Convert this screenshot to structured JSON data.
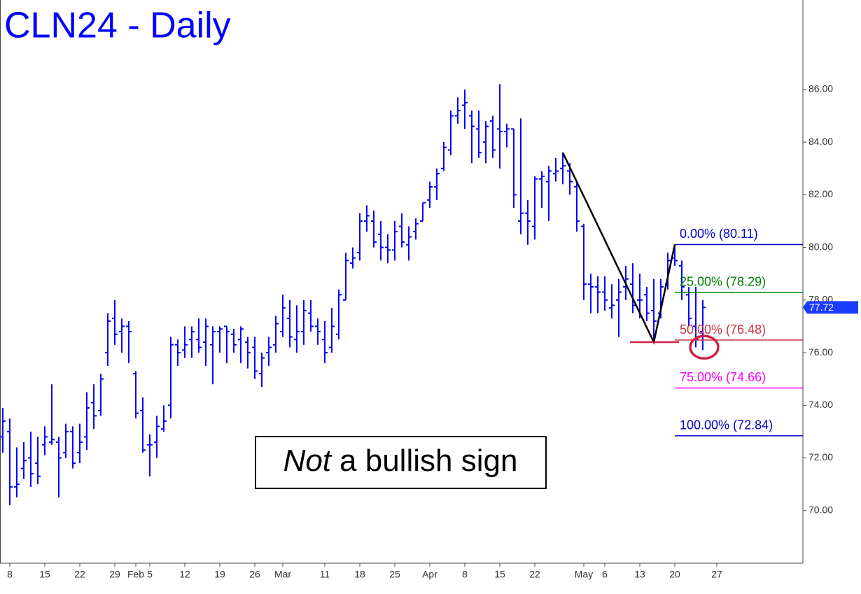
{
  "chart_data": {
    "type": "ohlc",
    "title": "CLN24 - Daily",
    "color": "#0000ff",
    "categories": [
      "01-05",
      "01-08",
      "01-09",
      "01-10",
      "01-11",
      "01-12",
      "01-15",
      "01-16",
      "01-17",
      "01-18",
      "01-19",
      "01-22",
      "01-23",
      "01-24",
      "01-25",
      "01-26",
      "01-29",
      "01-30",
      "01-31",
      "02-01",
      "02-02",
      "02-05",
      "02-06",
      "02-07",
      "02-08",
      "02-09",
      "02-12",
      "02-13",
      "02-14",
      "02-15",
      "02-16",
      "02-19",
      "02-20",
      "02-21",
      "02-22",
      "02-23",
      "02-26",
      "02-27",
      "02-28",
      "02-29",
      "03-01",
      "03-04",
      "03-05",
      "03-06",
      "03-07",
      "03-08",
      "03-11",
      "03-12",
      "03-13",
      "03-14",
      "03-15",
      "03-18",
      "03-19",
      "03-20",
      "03-21",
      "03-22",
      "03-25",
      "03-26",
      "03-27",
      "03-28",
      "03-29",
      "04-01",
      "04-02",
      "04-03",
      "04-04",
      "04-05",
      "04-08",
      "04-09",
      "04-10",
      "04-11",
      "04-12",
      "04-15",
      "04-16",
      "04-17",
      "04-18",
      "04-19",
      "04-22",
      "04-23",
      "04-24",
      "04-25",
      "04-26",
      "04-29",
      "04-30",
      "05-01",
      "05-02",
      "05-03",
      "05-06",
      "05-07",
      "05-08",
      "05-09",
      "05-10",
      "05-13",
      "05-14",
      "05-15",
      "05-16",
      "05-17",
      "05-20",
      "05-21",
      "05-22",
      "05-23",
      "05-24"
    ],
    "open": [
      72.8,
      73.0,
      70.9,
      71.6,
      72.0,
      71.8,
      72.5,
      72.6,
      72.6,
      72.2,
      73.0,
      72.2,
      72.8,
      74.1,
      73.8,
      76.0,
      77.3,
      76.8,
      77.0,
      75.2,
      73.8,
      72.5,
      72.6,
      73.1,
      74.0,
      76.3,
      76.1,
      76.5,
      76.5,
      76.4,
      76.3,
      76.8,
      77.0,
      76.7,
      76.5,
      76.4,
      76.2,
      75.2,
      76.0,
      76.3,
      76.8,
      77.3,
      76.5,
      76.8,
      77.5,
      77.0,
      76.5,
      76.2,
      76.7,
      78.0,
      79.4,
      79.8,
      81.0,
      81.0,
      80.5,
      80.0,
      79.9,
      80.8,
      80.1,
      80.6,
      81.0,
      81.8,
      82.3,
      83.0,
      83.7,
      85.0,
      85.4,
      85.0,
      84.5,
      84.0,
      84.8,
      84.5,
      84.4,
      84.5,
      81.0,
      81.3,
      80.8,
      82.6,
      82.5,
      82.8,
      83.0,
      82.9,
      82.3,
      80.8,
      78.6,
      78.5,
      78.3,
      77.7,
      78.0,
      78.5,
      78.6,
      78.0,
      78.2,
      77.6,
      77.5,
      78.6,
      79.6,
      79.3,
      78.2,
      77.0,
      76.8
    ],
    "high": [
      73.9,
      73.5,
      72.4,
      72.6,
      73.0,
      72.8,
      73.2,
      74.8,
      72.8,
      73.3,
      73.2,
      73.3,
      74.5,
      74.8,
      75.2,
      77.5,
      78.0,
      77.3,
      77.2,
      75.3,
      74.3,
      72.9,
      73.6,
      74.0,
      76.6,
      76.5,
      77.0,
      77.0,
      77.3,
      77.3,
      77.0,
      77.0,
      77.0,
      76.9,
      77.0,
      76.6,
      76.6,
      76.0,
      76.6,
      77.4,
      78.2,
      78.0,
      77.8,
      78.0,
      78.0,
      77.3,
      77.2,
      77.7,
      78.4,
      79.8,
      80.0,
      81.3,
      81.6,
      81.4,
      81.0,
      80.5,
      81.0,
      81.3,
      80.8,
      81.1,
      81.7,
      82.5,
      83.0,
      84.0,
      85.2,
      85.7,
      86.0,
      85.2,
      85.2,
      84.8,
      85.0,
      86.2,
      84.7,
      84.5,
      84.9,
      81.8,
      82.7,
      82.9,
      83.1,
      83.4,
      83.6,
      83.2,
      82.5,
      80.9,
      79.0,
      78.9,
      78.9,
      78.6,
      78.8,
      79.3,
      79.4,
      79.0,
      78.5,
      78.8,
      78.8,
      79.8,
      80.11,
      79.5,
      78.5,
      78.5,
      78.0
    ],
    "low": [
      72.2,
      70.2,
      70.5,
      71.2,
      70.9,
      71.0,
      72.1,
      72.5,
      70.5,
      72.0,
      71.6,
      71.8,
      72.3,
      73.1,
      73.6,
      75.5,
      76.3,
      76.0,
      75.6,
      73.5,
      72.2,
      71.3,
      72.0,
      73.0,
      73.5,
      75.5,
      75.8,
      75.8,
      76.0,
      75.5,
      74.8,
      76.0,
      75.6,
      76.0,
      75.6,
      75.4,
      75.0,
      74.7,
      75.5,
      76.0,
      76.6,
      76.2,
      76.0,
      76.3,
      76.8,
      76.3,
      75.6,
      76.0,
      76.5,
      78.0,
      79.2,
      79.5,
      80.6,
      80.0,
      79.5,
      79.4,
      79.5,
      80.0,
      79.5,
      80.3,
      81.0,
      81.5,
      81.8,
      82.9,
      83.5,
      84.7,
      84.5,
      83.2,
      83.4,
      83.2,
      83.4,
      83.0,
      83.8,
      81.5,
      80.5,
      80.1,
      80.3,
      81.5,
      81.0,
      82.5,
      82.4,
      82.0,
      80.6,
      78.0,
      77.5,
      77.5,
      77.6,
      77.3,
      76.6,
      78.0,
      77.5,
      77.3,
      77.2,
      76.4,
      77.3,
      78.4,
      79.3,
      78.0,
      77.0,
      76.2,
      76.1
    ],
    "close": [
      73.4,
      70.9,
      71.0,
      71.9,
      71.4,
      71.3,
      72.8,
      72.7,
      72.0,
      73.0,
      71.8,
      72.6,
      73.9,
      73.6,
      75.0,
      77.2,
      76.7,
      77.0,
      76.8,
      73.7,
      72.3,
      72.5,
      73.2,
      73.4,
      76.3,
      76.0,
      76.3,
      76.8,
      76.2,
      77.0,
      76.8,
      76.9,
      76.8,
      76.3,
      76.9,
      76.0,
      75.3,
      75.8,
      76.2,
      77.1,
      77.7,
      76.6,
      76.8,
      77.6,
      77.0,
      76.8,
      76.0,
      77.0,
      78.2,
      79.5,
      79.6,
      81.0,
      81.2,
      80.2,
      80.0,
      79.9,
      80.6,
      80.2,
      80.4,
      80.9,
      81.7,
      82.3,
      82.8,
      83.8,
      85.0,
      85.2,
      85.5,
      84.6,
      83.6,
      84.6,
      83.7,
      84.4,
      84.5,
      82.0,
      81.3,
      81.0,
      82.6,
      82.7,
      82.9,
      82.9,
      83.1,
      82.5,
      81.0,
      78.6,
      78.5,
      78.3,
      78.0,
      77.8,
      78.3,
      78.8,
      77.8,
      78.0,
      77.5,
      77.2,
      78.5,
      79.5,
      79.5,
      78.5,
      77.3,
      76.5,
      77.72
    ],
    "last_price": 77.72,
    "ylim": [
      68,
      89.4
    ],
    "yticks": [
      {
        "value": 70,
        "label": "70.00"
      },
      {
        "value": 72,
        "label": "72.00"
      },
      {
        "value": 74,
        "label": "74.00"
      },
      {
        "value": 76,
        "label": "76.00"
      },
      {
        "value": 78,
        "label": "78.00"
      },
      {
        "value": 80,
        "label": "80.00"
      },
      {
        "value": 82,
        "label": "82.00"
      },
      {
        "value": 84,
        "label": "84.00"
      },
      {
        "value": 86,
        "label": "86.00"
      }
    ],
    "xticks": [
      {
        "value": "01-08",
        "label": "8"
      },
      {
        "value": "01-15",
        "label": "15"
      },
      {
        "value": "01-22",
        "label": "22"
      },
      {
        "value": "01-29",
        "label": "29"
      },
      {
        "value": "02-01",
        "label": "Feb"
      },
      {
        "value": "02-05",
        "label": "5"
      },
      {
        "value": "02-12",
        "label": "12"
      },
      {
        "value": "02-19",
        "label": "19"
      },
      {
        "value": "02-26",
        "label": "26"
      },
      {
        "value": "03-01",
        "label": "Mar"
      },
      {
        "value": "03-11",
        "label": "11"
      },
      {
        "value": "03-18",
        "label": "18"
      },
      {
        "value": "03-25",
        "label": "25"
      },
      {
        "value": "04-01",
        "label": "Apr"
      },
      {
        "value": "04-08",
        "label": "8"
      },
      {
        "value": "04-15",
        "label": "15"
      },
      {
        "value": "04-22",
        "label": "22"
      },
      {
        "value": "05-01",
        "label": "May"
      },
      {
        "value": "05-06",
        "label": "6"
      },
      {
        "value": "05-13",
        "label": "13"
      },
      {
        "value": "05-20",
        "label": "20"
      },
      {
        "value": "05-27",
        "label": "27"
      }
    ],
    "levels": [
      {
        "label": "0.00% (80.11)",
        "value": 80.11,
        "color": "#0000cc"
      },
      {
        "label": "25.00% (78.29)",
        "value": 78.29,
        "color": "#008000"
      },
      {
        "label": "50.00% (76.48)",
        "value": 76.48,
        "color": "#cc3344"
      },
      {
        "label": "75.00% (74.66)",
        "value": 74.66,
        "color": "#ff00ff"
      },
      {
        "label": "100.00% (72.84)",
        "value": 72.84,
        "color": "#0000cc"
      }
    ],
    "pattern_points": [
      {
        "x": "04-26",
        "value": 83.6
      },
      {
        "x": "05-15",
        "value": 76.4
      },
      {
        "x": "05-20",
        "value": 80.11
      }
    ],
    "annotation": [
      "Not",
      "a bullish sign"
    ]
  }
}
